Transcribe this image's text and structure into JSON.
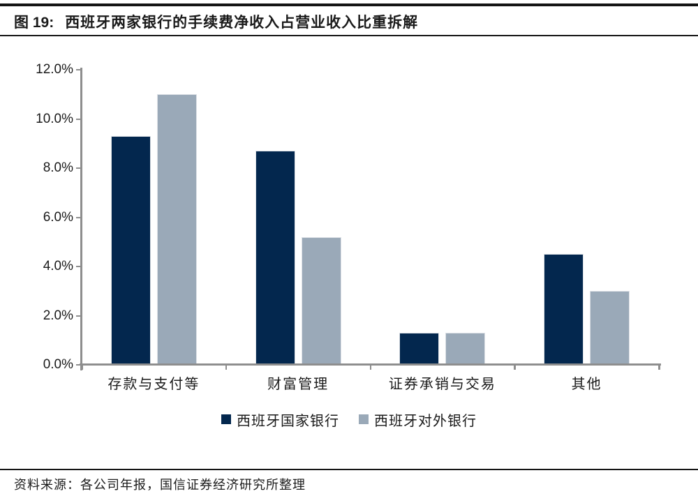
{
  "header": {
    "title_label": "图 19:",
    "title_text": "西班牙两家银行的手续费净收入占营业收入比重拆解"
  },
  "chart_data": {
    "type": "bar",
    "categories": [
      "存款与支付等",
      "财富管理",
      "证券承销与交易",
      "其他"
    ],
    "series": [
      {
        "name": "西班牙国家银行",
        "color": "#03274e",
        "values": [
          9.3,
          8.7,
          1.3,
          4.5
        ]
      },
      {
        "name": "西班牙对外银行",
        "color": "#9aa9b8",
        "values": [
          11.0,
          5.2,
          1.3,
          3.0
        ]
      }
    ],
    "ylim": [
      0,
      12
    ],
    "ytick_step": 2,
    "ytick_labels": [
      "0.0%",
      "2.0%",
      "4.0%",
      "6.0%",
      "8.0%",
      "10.0%",
      "12.0%"
    ],
    "ylabel_suffix": "%",
    "grid": false,
    "legend_position": "bottom",
    "axis_color": "#8e8e8e"
  },
  "footer": {
    "source_text": "资料来源：各公司年报，国信证券经济研究所整理"
  }
}
